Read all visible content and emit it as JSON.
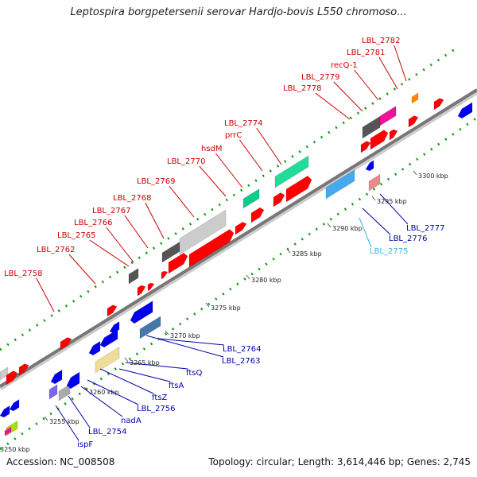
{
  "title": "Leptospira borgpetersenii serovar Hardjo-bovis L550 chromoso...",
  "footer": {
    "accession": "Accession: NC_008508",
    "summary": "Topology: circular; Length: 3,614,446 bp; Genes: 2,745"
  },
  "colors": {
    "forward_gene": "#ff0000",
    "reverse_gene": "#0000ee",
    "forward_label": "#cc0000",
    "reverse_label": "#0000aa",
    "highlight_label": "#33bbee",
    "backbone": "#888888",
    "dots": "#119911"
  },
  "ticks": [
    "3250 kbp",
    "3255 kbp",
    "3260 kbp",
    "3265 kbp",
    "3270 kbp",
    "3275 kbp",
    "3280 kbp",
    "3285 kbp",
    "3290 kbp",
    "3295 kbp",
    "3300 kbp"
  ],
  "forward_labels": [
    "LBL_2758",
    "LBL_2762",
    "LBL_2765",
    "LBL_2766",
    "LBL_2767",
    "LBL_2768",
    "LBL_2769",
    "LBL_2770",
    "hsdM",
    "prrC",
    "LBL_2774",
    "LBL_2778",
    "LBL_2779",
    "recQ-1",
    "LBL_2781",
    "LBL_2782"
  ],
  "reverse_labels": [
    "ispF",
    "LBL_2754",
    "nadA",
    "LBL_2756",
    "ftsZ",
    "ftsA",
    "ftsQ",
    "LBL_2763",
    "LBL_2764",
    "LBL_2775",
    "LBL_2776",
    "LBL_2777"
  ]
}
